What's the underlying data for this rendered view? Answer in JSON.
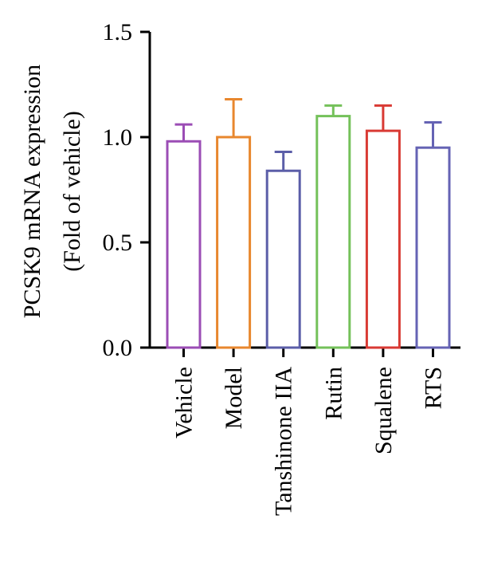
{
  "chart_data": {
    "type": "bar",
    "title": "",
    "ylabel_line1": "PCSK9 mRNA expression",
    "ylabel_line2": "(Fold of vehicle)",
    "xlabel": "",
    "categories": [
      "Vehicle",
      "Model",
      "Tanshinone IIA",
      "Rutin",
      "Squalene",
      "RTS"
    ],
    "values": [
      0.98,
      1.0,
      0.84,
      1.1,
      1.03,
      0.95
    ],
    "errors": [
      0.08,
      0.18,
      0.09,
      0.05,
      0.12,
      0.12
    ],
    "colors": [
      "#9B4DB5",
      "#E8872E",
      "#5B5EA8",
      "#74C15A",
      "#D93A34",
      "#6563B4"
    ],
    "ylim": [
      0,
      1.5
    ],
    "yticks": [
      "0.0",
      "0.5",
      "1.0",
      "1.5"
    ],
    "bar_fill": "none",
    "grid": false,
    "legend": "none"
  }
}
